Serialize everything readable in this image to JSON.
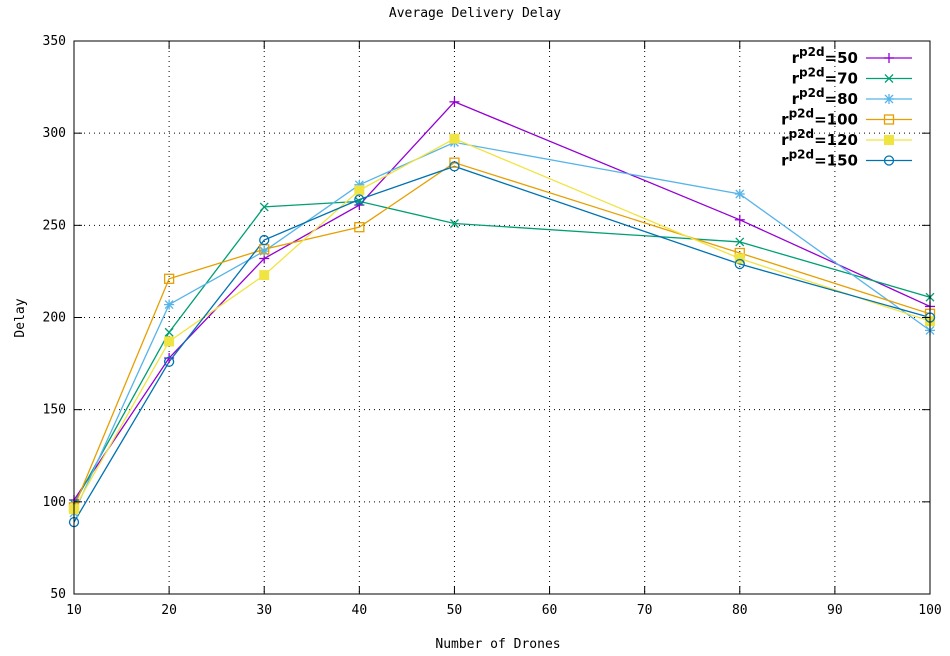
{
  "chart_data": {
    "type": "line",
    "title": "Average Delivery Delay",
    "xlabel": "Number of Drones",
    "ylabel": "Delay",
    "xlim": [
      10,
      100
    ],
    "ylim": [
      50,
      350
    ],
    "xticks": [
      10,
      20,
      30,
      40,
      50,
      60,
      70,
      80,
      90,
      100
    ],
    "yticks": [
      50,
      100,
      150,
      200,
      250,
      300,
      350
    ],
    "grid": true,
    "legend_position": "top-right",
    "x": [
      10,
      20,
      30,
      40,
      50,
      80,
      100
    ],
    "series": [
      {
        "name": "r",
        "sub": "p2d",
        "value": "=50",
        "color": "#9400d3",
        "marker": "plus",
        "values": [
          101,
          178,
          232,
          261,
          317,
          253,
          206
        ]
      },
      {
        "name": "r",
        "sub": "p2d",
        "value": "=70",
        "color": "#009e73",
        "marker": "cross",
        "values": [
          99,
          192,
          260,
          263,
          251,
          241,
          211
        ]
      },
      {
        "name": "r",
        "sub": "p2d",
        "value": "=80",
        "color": "#56b4e9",
        "marker": "star",
        "values": [
          94,
          207,
          236,
          272,
          295,
          267,
          193
        ]
      },
      {
        "name": "r",
        "sub": "p2d",
        "value": "=100",
        "color": "#e69f00",
        "marker": "open-square",
        "values": [
          97,
          221,
          237,
          249,
          284,
          235,
          202
        ]
      },
      {
        "name": "r",
        "sub": "p2d",
        "value": "=120",
        "color": "#f0e442",
        "marker": "filled-square",
        "values": [
          96,
          187,
          223,
          269,
          297,
          232,
          198
        ]
      },
      {
        "name": "r",
        "sub": "p2d",
        "value": "=150",
        "color": "#0072b2",
        "marker": "open-circle",
        "values": [
          89,
          176,
          242,
          264,
          282,
          229,
          200
        ]
      }
    ]
  }
}
